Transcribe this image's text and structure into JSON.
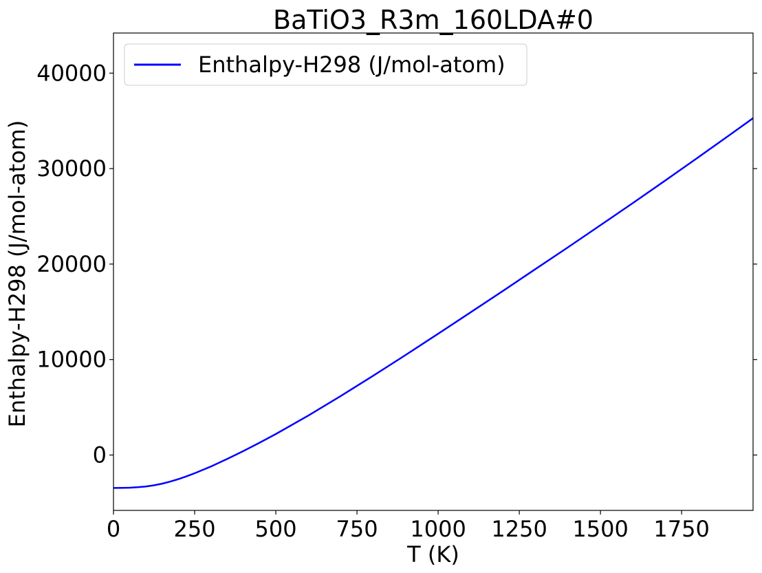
{
  "chart_data": {
    "type": "line",
    "title": "BaTiO3_R3m_160LDA#0",
    "xlabel": "T (K)",
    "ylabel": "Enthalpy-H298 (J/mol-atom)",
    "xlim": [
      0,
      1970
    ],
    "ylim": [
      -5800,
      44200
    ],
    "xticks": [
      0,
      250,
      500,
      750,
      1000,
      1250,
      1500,
      1750
    ],
    "yticks": [
      0,
      10000,
      20000,
      30000,
      40000
    ],
    "grid": false,
    "legend_position": "top-left",
    "series": [
      {
        "name": "Enthalpy-H298 (J/mol-atom)",
        "color": "#0000ff",
        "x": [
          0,
          25,
          50,
          75,
          100,
          125,
          150,
          175,
          200,
          225,
          250,
          275,
          300,
          350,
          400,
          450,
          500,
          600,
          700,
          800,
          900,
          1000,
          1100,
          1200,
          1300,
          1400,
          1500,
          1600,
          1700,
          1800,
          1900,
          1970
        ],
        "y": [
          -3450,
          -3445,
          -3420,
          -3370,
          -3290,
          -3170,
          -3000,
          -2780,
          -2520,
          -2230,
          -1910,
          -1560,
          -1200,
          -420,
          420,
          1290,
          2200,
          4130,
          6180,
          8310,
          10480,
          12700,
          14940,
          17200,
          19480,
          21760,
          24070,
          26400,
          28760,
          31150,
          33570,
          35280
        ]
      }
    ]
  }
}
